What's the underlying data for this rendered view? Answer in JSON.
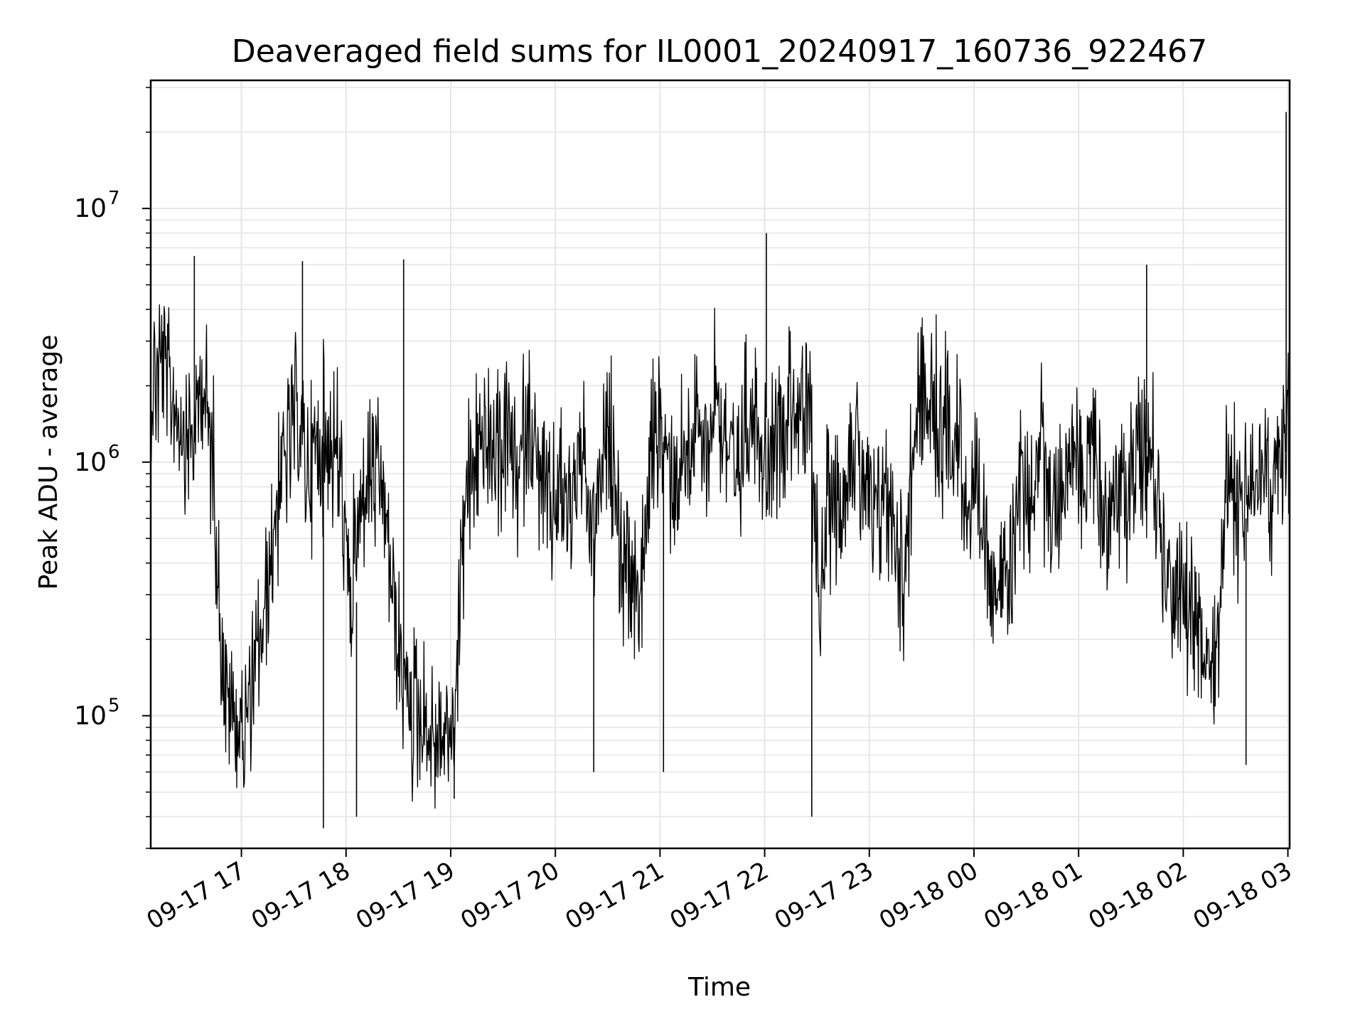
{
  "chart_data": {
    "type": "line",
    "title": "Deaveraged field sums for IL0001_20240917_160736_922467",
    "xlabel": "Time",
    "ylabel": "Peak ADU - average",
    "yscale": "log",
    "ylim": [
      30000,
      32000000
    ],
    "xlim": [
      "2024-09-17 16:08",
      "2024-09-18 03:01"
    ],
    "grid": true,
    "colors": {
      "line": "#000000",
      "grid": "#e6e6e6",
      "axes": "#000000"
    },
    "x_ticks": [
      "09-17 17",
      "09-17 18",
      "09-17 19",
      "09-17 20",
      "09-17 21",
      "09-17 22",
      "09-17 23",
      "09-18 00",
      "09-18 01",
      "09-18 02",
      "09-18 03"
    ],
    "y_ticks": [
      {
        "value": 100000,
        "base": "10",
        "exp": "5"
      },
      {
        "value": 1000000,
        "base": "10",
        "exp": "6"
      },
      {
        "value": 10000000,
        "base": "10",
        "exp": "7"
      }
    ],
    "series": [
      {
        "x": [
          "2024-09-17 16:08",
          "2024-09-17 16:14",
          "2024-09-17 16:20",
          "2024-09-17 16:26",
          "2024-09-17 16:32",
          "2024-09-17 16:38",
          "2024-09-17 16:44",
          "2024-09-17 16:50",
          "2024-09-17 16:56",
          "2024-09-17 17:02",
          "2024-09-17 17:08",
          "2024-09-17 17:14",
          "2024-09-17 17:20",
          "2024-09-17 17:26",
          "2024-09-17 17:32",
          "2024-09-17 17:38",
          "2024-09-17 17:44",
          "2024-09-17 17:50",
          "2024-09-17 17:56",
          "2024-09-17 18:02",
          "2024-09-17 18:08",
          "2024-09-17 18:14",
          "2024-09-17 18:20",
          "2024-09-17 18:26",
          "2024-09-17 18:32",
          "2024-09-17 18:38",
          "2024-09-17 18:44",
          "2024-09-17 18:50",
          "2024-09-17 18:56",
          "2024-09-17 19:02",
          "2024-09-17 19:08",
          "2024-09-17 19:14",
          "2024-09-17 19:20",
          "2024-09-17 19:26",
          "2024-09-17 19:32",
          "2024-09-17 19:38",
          "2024-09-17 19:44",
          "2024-09-17 19:50",
          "2024-09-17 19:56",
          "2024-09-17 20:02",
          "2024-09-17 20:08",
          "2024-09-17 20:14",
          "2024-09-17 20:20",
          "2024-09-17 20:26",
          "2024-09-17 20:32",
          "2024-09-17 20:38",
          "2024-09-17 20:44",
          "2024-09-17 20:50",
          "2024-09-17 20:56",
          "2024-09-17 21:02",
          "2024-09-17 21:08",
          "2024-09-17 21:14",
          "2024-09-17 21:20",
          "2024-09-17 21:26",
          "2024-09-17 21:32",
          "2024-09-17 21:38",
          "2024-09-17 21:44",
          "2024-09-17 21:50",
          "2024-09-17 21:56",
          "2024-09-17 22:02",
          "2024-09-17 22:08",
          "2024-09-17 22:14",
          "2024-09-17 22:20",
          "2024-09-17 22:26",
          "2024-09-17 22:32",
          "2024-09-17 22:38",
          "2024-09-17 22:44",
          "2024-09-17 22:50",
          "2024-09-17 22:56",
          "2024-09-17 23:02",
          "2024-09-17 23:08",
          "2024-09-17 23:14",
          "2024-09-17 23:20",
          "2024-09-17 23:26",
          "2024-09-17 23:32",
          "2024-09-17 23:38",
          "2024-09-17 23:44",
          "2024-09-17 23:50",
          "2024-09-17 23:56",
          "2024-09-18 00:02",
          "2024-09-18 00:08",
          "2024-09-18 00:14",
          "2024-09-18 00:20",
          "2024-09-18 00:26",
          "2024-09-18 00:32",
          "2024-09-18 00:38",
          "2024-09-18 00:44",
          "2024-09-18 00:50",
          "2024-09-18 00:56",
          "2024-09-18 01:02",
          "2024-09-18 01:08",
          "2024-09-18 01:14",
          "2024-09-18 01:20",
          "2024-09-18 01:26",
          "2024-09-18 01:32",
          "2024-09-18 01:38",
          "2024-09-18 01:44",
          "2024-09-18 01:50",
          "2024-09-18 01:56",
          "2024-09-18 02:02",
          "2024-09-18 02:08",
          "2024-09-18 02:14",
          "2024-09-18 02:20",
          "2024-09-18 02:26",
          "2024-09-18 02:32",
          "2024-09-18 02:38",
          "2024-09-18 02:44",
          "2024-09-18 02:50",
          "2024-09-18 02:56",
          "2024-09-18 03:01"
        ],
        "y": [
          2000000,
          2500000,
          1800000,
          1500000,
          1200000,
          2200000,
          900000,
          130000,
          100000,
          90000,
          150000,
          260000,
          700000,
          1100000,
          1500000,
          900000,
          1200000,
          1300000,
          1000000,
          280000,
          600000,
          900000,
          800000,
          350000,
          140000,
          110000,
          95000,
          80000,
          85000,
          90000,
          700000,
          1000000,
          1300000,
          900000,
          1400000,
          800000,
          1600000,
          900000,
          600000,
          800000,
          700000,
          1100000,
          500000,
          800000,
          1200000,
          450000,
          300000,
          350000,
          1300000,
          1200000,
          900000,
          1100000,
          1500000,
          1000000,
          2000000,
          1300000,
          700000,
          1600000,
          1500000,
          1100000,
          1300000,
          1800000,
          1500000,
          1300000,
          300000,
          800000,
          700000,
          1200000,
          900000,
          500000,
          800000,
          600000,
          350000,
          1500000,
          1600000,
          1500000,
          1300000,
          1400000,
          700000,
          600000,
          450000,
          350000,
          280000,
          900000,
          700000,
          1200000,
          600000,
          800000,
          1100000,
          900000,
          1300000,
          600000,
          800000,
          700000,
          1000000,
          1200000,
          900000,
          400000,
          250000,
          300000,
          200000,
          180000,
          220000,
          1000000,
          600000,
          800000,
          900000,
          700000,
          1100000,
          1200000
        ],
        "spikes": [
          [
            "2024-09-17 16:33",
            6500000
          ],
          [
            "2024-09-17 17:35",
            6200000
          ],
          [
            "2024-09-17 17:47",
            36000
          ],
          [
            "2024-09-17 18:06",
            40000
          ],
          [
            "2024-09-17 18:33",
            6300000
          ],
          [
            "2024-09-17 19:02",
            47000
          ],
          [
            "2024-09-17 20:22",
            60000
          ],
          [
            "2024-09-17 21:02",
            60000
          ],
          [
            "2024-09-17 22:01",
            8000000
          ],
          [
            "2024-09-17 22:27",
            40000
          ],
          [
            "2024-09-18 01:39",
            6000000
          ],
          [
            "2024-09-18 02:36",
            64000
          ],
          [
            "2024-09-18 02:59",
            24000000
          ]
        ]
      }
    ]
  }
}
